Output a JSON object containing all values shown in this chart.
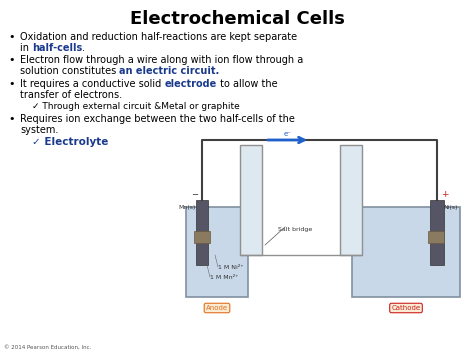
{
  "title": "Electrochemical Cells",
  "background_color": "#ffffff",
  "title_color": "#000000",
  "title_fontsize": 13,
  "blue_color": "#1a3a8c",
  "black_color": "#000000",
  "bullet_fontsize": 7.0,
  "sub_fontsize": 6.5,
  "copyright": "© 2014 Pearson Education, Inc.",
  "sub1": "✓ Through external circuit &Metal or graphite",
  "sub2_blue": "✓ Electrolyte",
  "anode_label": "Anode",
  "cathode_label": "Cathode",
  "salt_bridge_label": "Salt bridge",
  "mn_label": "Mn(s)",
  "ni_label": "Ni(s)",
  "solution1": "1 M Ni²⁺",
  "solution2": "1 M Mn²⁺",
  "electron_label": "e⁻",
  "minus_sign": "−",
  "plus_sign": "+",
  "anode_color": "#e07020",
  "cathode_color": "#cc2020",
  "arrow_color": "#2060cc",
  "beaker_fill": "#c8d8e8",
  "beaker_edge": "#8090a0",
  "salt_fill": "#dde8f0",
  "electrode_color": "#555566",
  "wire_color": "#404040",
  "solution_label_color": "#333333"
}
